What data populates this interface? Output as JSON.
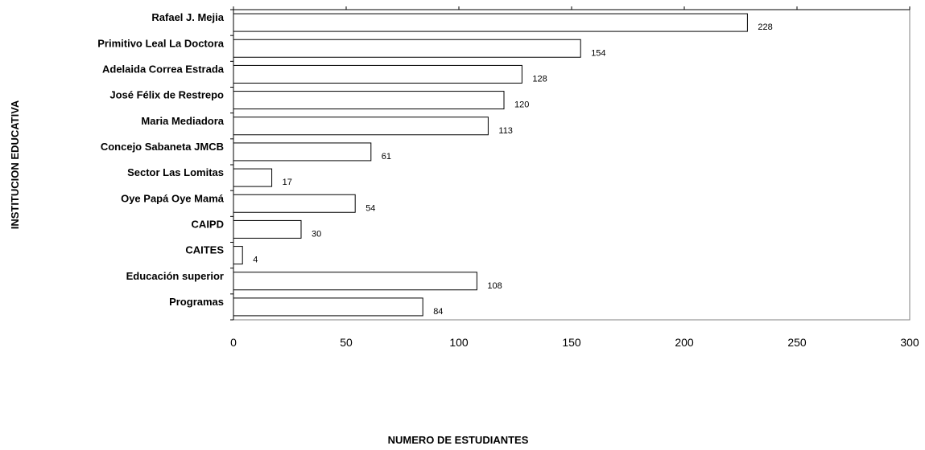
{
  "chart_data": {
    "type": "bar",
    "orientation": "horizontal",
    "xlabel": "NUMERO DE ESTUDIANTES",
    "ylabel": "INSTITUCION EDUCATIVA",
    "xlim": [
      0,
      300
    ],
    "xticks": [
      "0",
      "50",
      "100",
      "150",
      "200",
      "250",
      "300"
    ],
    "grid": false,
    "categories": [
      "Rafael J. Mejia",
      "Primitivo Leal La Doctora",
      "Adelaida Correa Estrada",
      "José Félix de Restrepo",
      "Maria Mediadora",
      "Concejo Sabaneta JMCB",
      "Sector Las Lomitas",
      "Oye Papá Oye Mamá",
      "CAIPD",
      "CAITES",
      "Educación superior",
      "Programas"
    ],
    "values": [
      228,
      154,
      128,
      120,
      113,
      61,
      17,
      54,
      30,
      4,
      108,
      84
    ],
    "bar_fill": "#ffffff",
    "bar_stroke": "#000000"
  }
}
